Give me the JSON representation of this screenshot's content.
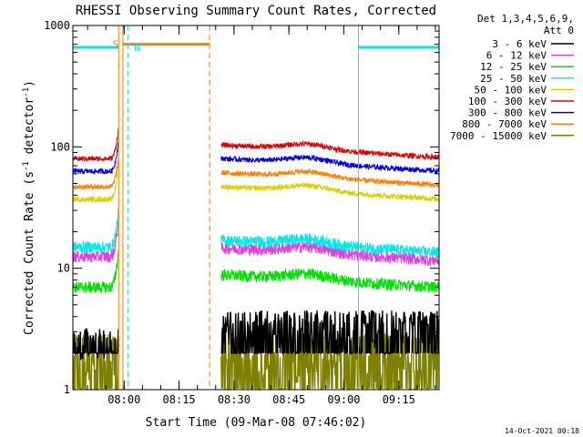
{
  "chart_data": {
    "type": "line",
    "title": "RHESSI Observing Summary Count Rates, Corrected",
    "xlabel": "Start Time (09-Mar-08 07:46:02)",
    "ylabel": "Corrected Count Rate (s",
    "ylabel_sup1": "-1",
    "ylabel_mid": " detector",
    "ylabel_sup2": "-1",
    "ylabel_end": ")",
    "y_scale": "log",
    "ylim": [
      1,
      1000
    ],
    "y_ticks": [
      {
        "v": 1,
        "label": "1"
      },
      {
        "v": 10,
        "label": "10"
      },
      {
        "v": 100,
        "label": "100"
      },
      {
        "v": 1000,
        "label": "1000"
      }
    ],
    "xlim": [
      "07:46",
      "09:26"
    ],
    "x_ticks": [
      "08:00",
      "08:15",
      "08:30",
      "08:45",
      "09:00",
      "09:15"
    ],
    "grid": false,
    "legend_placement": "right",
    "legend_header": [
      "Det 1,3,4,5,6,9,",
      "Att 0"
    ],
    "series": [
      {
        "name": "3 - 6 keV",
        "color": "#000000"
      },
      {
        "name": "6 - 12 keV",
        "color": "#e040e0"
      },
      {
        "name": "12 - 25 keV",
        "color": "#00e000"
      },
      {
        "name": "25 - 50 keV",
        "color": "#00e8e8"
      },
      {
        "name": "50 - 100 keV",
        "color": "#d8d000"
      },
      {
        "name": "100 - 300 keV",
        "color": "#e00000"
      },
      {
        "name": "300 - 800 keV",
        "color": "#0000e0"
      },
      {
        "name": "800 - 7000 keV",
        "color": "#ff7f00"
      },
      {
        "name": "7000 - 15000 keV",
        "color": "#808000"
      }
    ],
    "segments": [
      {
        "start": "07:46",
        "end": "07:58:30"
      },
      {
        "start": "08:26:30",
        "end": "09:26"
      }
    ],
    "series_levels": [
      {
        "name": "3 - 6 keV",
        "seg1": 2.5,
        "seg2": 2.8
      },
      {
        "name": "6 - 12 keV",
        "seg1": 12.5,
        "seg2": 12.5
      },
      {
        "name": "12 - 25 keV",
        "seg1": 7,
        "seg2": 7.5
      },
      {
        "name": "25 - 50 keV",
        "seg1": 15,
        "seg2": 14.5
      },
      {
        "name": "50 - 100 keV",
        "seg1": 37,
        "seg2": 40
      },
      {
        "name": "100 - 300 keV",
        "seg1": 80,
        "seg2": 88
      },
      {
        "name": "300 - 800 keV",
        "seg1": 63,
        "seg2": 68
      },
      {
        "name": "800 - 7000 keV",
        "seg1": 47,
        "seg2": 52
      },
      {
        "name": "7000 - 15000 keV",
        "seg1": 1.6,
        "seg2": 1.6
      }
    ],
    "flag_bars": [
      {
        "label": "S",
        "color": "#ff7f00",
        "start": "07:59:40",
        "end": "08:23:20",
        "level": 700
      },
      {
        "label": "N",
        "color": "#00e8e8",
        "start": "07:46",
        "end": "07:58:30",
        "level": 660
      },
      {
        "label": "",
        "color": "#00e8e8",
        "start": "09:04",
        "end": "09:26",
        "level": 660
      }
    ],
    "vertical_markers": [
      {
        "time": "07:58:30",
        "color": "#ff7f00",
        "style": "solid"
      },
      {
        "time": "07:59:40",
        "color": "#ff7f00",
        "style": "solid"
      },
      {
        "time": "08:01",
        "color": "#00e8e8",
        "style": "dashed"
      },
      {
        "time": "08:23:20",
        "color": "#ff7f00",
        "style": "dashed"
      },
      {
        "time": "09:04",
        "color": "#00e8e8",
        "style": "solid"
      },
      {
        "time": "09:26",
        "color": "#00e8e8",
        "style": "dashed"
      }
    ],
    "timestamp": "14-Oct-2021 00:18"
  }
}
